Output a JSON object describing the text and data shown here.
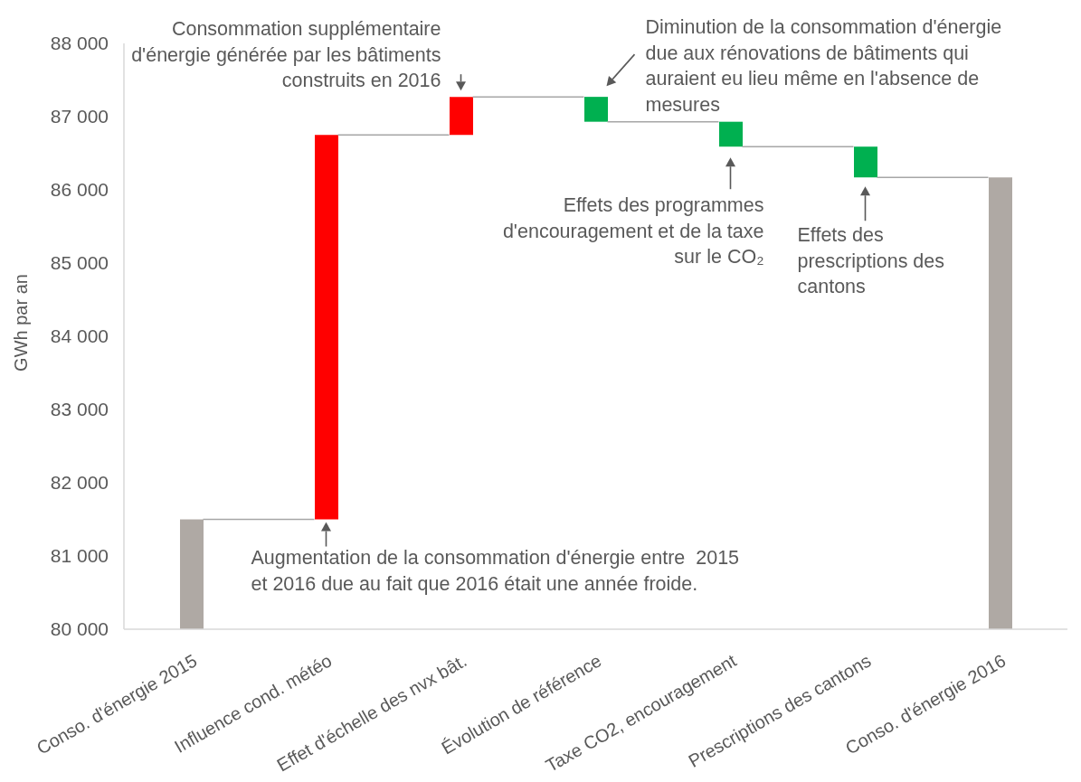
{
  "chart_data": {
    "type": "bar",
    "ylabel": "GWh par an",
    "categories": [
      "Conso. d'énergie 2015",
      "Influence cond. météo",
      "Effet d'échelle des nvx bât.",
      "Évolution de référence",
      "Taxe CO2, encouragement",
      "Prescriptions des cantons",
      "Conso. d'énergie 2016"
    ],
    "values": [
      81500,
      5250,
      520,
      -340,
      -340,
      -420,
      86170
    ],
    "base": [
      null,
      81500,
      86750,
      87270,
      86930,
      86590,
      null
    ],
    "colors": [
      "#afa9a4",
      "#ff0000",
      "#ff0000",
      "#00b050",
      "#00b050",
      "#00b050",
      "#afa9a4"
    ],
    "ylim": [
      80000,
      88000
    ],
    "yticks": [
      {
        "value": 80000,
        "label": "80 000"
      },
      {
        "value": 81000,
        "label": "81 000"
      },
      {
        "value": 82000,
        "label": "82 000"
      },
      {
        "value": 83000,
        "label": "83 000"
      },
      {
        "value": 84000,
        "label": "84 000"
      },
      {
        "value": 85000,
        "label": "85 000"
      },
      {
        "value": 86000,
        "label": "86 000"
      },
      {
        "value": 87000,
        "label": "87 000"
      },
      {
        "value": 88000,
        "label": "88 000"
      }
    ],
    "annotations": [
      {
        "text": "Consommation supplémentaire\nd'énergie générée par les bâtiments\nconstruits en 2016",
        "x": "Effet d'échelle des nvx bât.",
        "y": 87270
      },
      {
        "text": "Diminution de la consommation d'énergie\ndue aux rénovations de bâtiments qui\nauraient eu lieu même en l'absence de\nmesures",
        "x": "Évolution de référence",
        "y": 87270
      },
      {
        "text": "Effets des programmes\nd'encouragement et de la taxe\nsur le CO₂",
        "x": "Taxe CO2, encouragement",
        "y": 86590
      },
      {
        "text": "Effets des\nprescriptions des\ncantons",
        "x": "Prescriptions des cantons",
        "y": 86170
      },
      {
        "text": "Augmentation de la consommation d'énergie entre  2015\net 2016 due au fait que 2016 était une année froide.",
        "x": "Influence cond. météo",
        "y": 81500
      }
    ]
  }
}
